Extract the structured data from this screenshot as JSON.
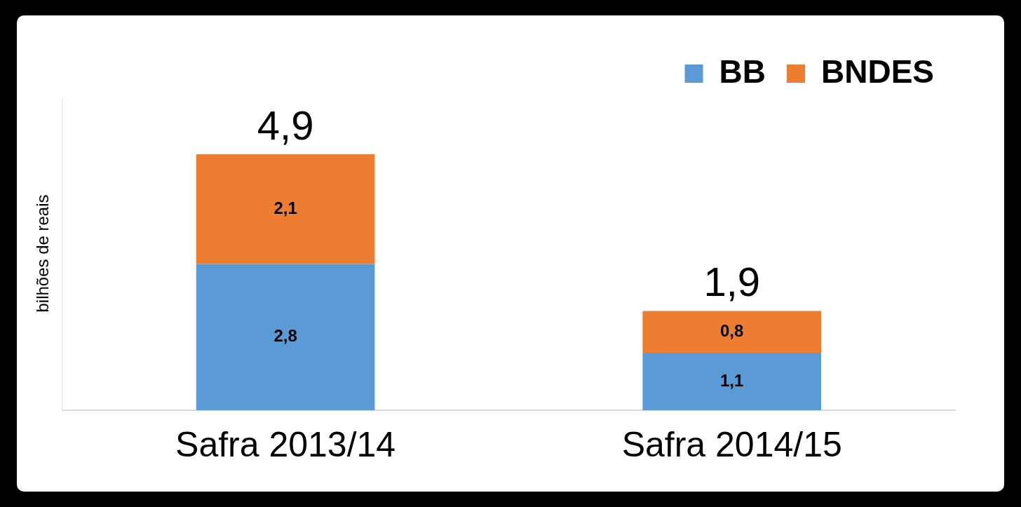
{
  "chart_data": {
    "type": "bar",
    "stacked": true,
    "data_labels": true,
    "tick_labels": "x",
    "grid": false,
    "legend": "top right",
    "y_label": "bilhões de reais",
    "categories": [
      "Safra 2013/14",
      "Safra 2014/15"
    ],
    "series": [
      {
        "name": "BB",
        "color": "#5b9bd5",
        "values": [
          2.8,
          1.1
        ],
        "value_labels": [
          "2,8",
          "1,1"
        ]
      },
      {
        "name": "BNDES",
        "color": "#ed7d31",
        "values": [
          2.1,
          0.8
        ],
        "value_labels": [
          "2,1",
          "0,8"
        ]
      }
    ],
    "totals": {
      "values": [
        4.9,
        1.9
      ],
      "value_labels": [
        "4,9",
        "1,9"
      ]
    },
    "ylim": [
      0,
      6
    ]
  }
}
